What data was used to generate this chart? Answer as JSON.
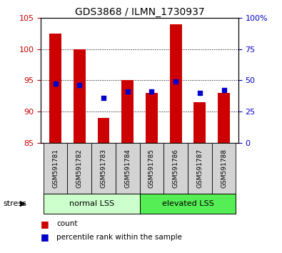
{
  "title": "GDS3868 / ILMN_1730937",
  "samples": [
    "GSM591781",
    "GSM591782",
    "GSM591783",
    "GSM591784",
    "GSM591785",
    "GSM591786",
    "GSM591787",
    "GSM591788"
  ],
  "red_values": [
    102.5,
    100.0,
    89.0,
    95.0,
    93.0,
    104.0,
    91.5,
    93.0
  ],
  "blue_values": [
    94.5,
    94.3,
    92.2,
    93.2,
    93.2,
    94.8,
    93.0,
    93.5
  ],
  "ylim_left": [
    85,
    105
  ],
  "ylim_right": [
    0,
    100
  ],
  "yticks_left": [
    85,
    90,
    95,
    100,
    105
  ],
  "yticks_right": [
    0,
    25,
    50,
    75,
    100
  ],
  "ytick_right_labels": [
    "0",
    "25",
    "50",
    "75",
    "100%"
  ],
  "groups": [
    {
      "label": "normal LSS",
      "start": 0,
      "end": 4,
      "color": "#ccffcc"
    },
    {
      "label": "elevated LSS",
      "start": 4,
      "end": 8,
      "color": "#55ee55"
    }
  ],
  "group_label": "stress",
  "legend_items": [
    {
      "color": "#cc0000",
      "label": "count"
    },
    {
      "color": "#0000cc",
      "label": "percentile rank within the sample"
    }
  ],
  "bar_width": 0.5,
  "bar_bottom": 85,
  "grid_ticks": [
    90,
    95,
    100
  ],
  "bg_color": "#ffffff",
  "plot_bg_color": "#ffffff",
  "tick_label_color_left": "#cc0000",
  "tick_label_color_right": "#0000cc",
  "bar_color": "#cc0000",
  "blue_color": "#0000cc",
  "cell_color": "#d3d3d3"
}
